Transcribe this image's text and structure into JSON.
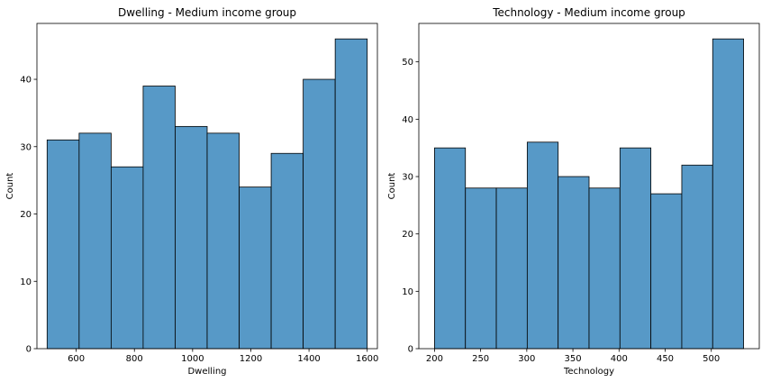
{
  "chart_data": [
    {
      "type": "bar",
      "title": "Dwelling - Medium income group",
      "xlabel": "Dwelling",
      "ylabel": "Count",
      "bin_edges": [
        500,
        610,
        720,
        830,
        940,
        1050,
        1160,
        1270,
        1380,
        1490,
        1600
      ],
      "values": [
        31,
        32,
        27,
        39,
        33,
        32,
        24,
        29,
        40,
        46
      ],
      "xlim": [
        465,
        1635
      ],
      "ylim": [
        0,
        48.3
      ],
      "xticks": [
        600,
        800,
        1000,
        1200,
        1400,
        1600
      ],
      "yticks": [
        0,
        10,
        20,
        30,
        40
      ],
      "grid": false,
      "bar_color": "#5799c7",
      "edge_color": "#000000"
    },
    {
      "type": "bar",
      "title": "Technology - Medium income group",
      "xlabel": "Technology",
      "ylabel": "Count",
      "bin_edges": [
        200,
        233.5,
        267,
        300.5,
        334,
        367.5,
        401,
        434.5,
        468,
        501.5,
        535
      ],
      "values": [
        35,
        28,
        28,
        36,
        30,
        28,
        35,
        27,
        32,
        54
      ],
      "xlim": [
        183,
        552
      ],
      "ylim": [
        0,
        56.7
      ],
      "xticks": [
        200,
        250,
        300,
        350,
        400,
        450,
        500
      ],
      "yticks": [
        0,
        10,
        20,
        30,
        40,
        50
      ],
      "grid": false,
      "bar_color": "#5799c7",
      "edge_color": "#000000"
    }
  ]
}
